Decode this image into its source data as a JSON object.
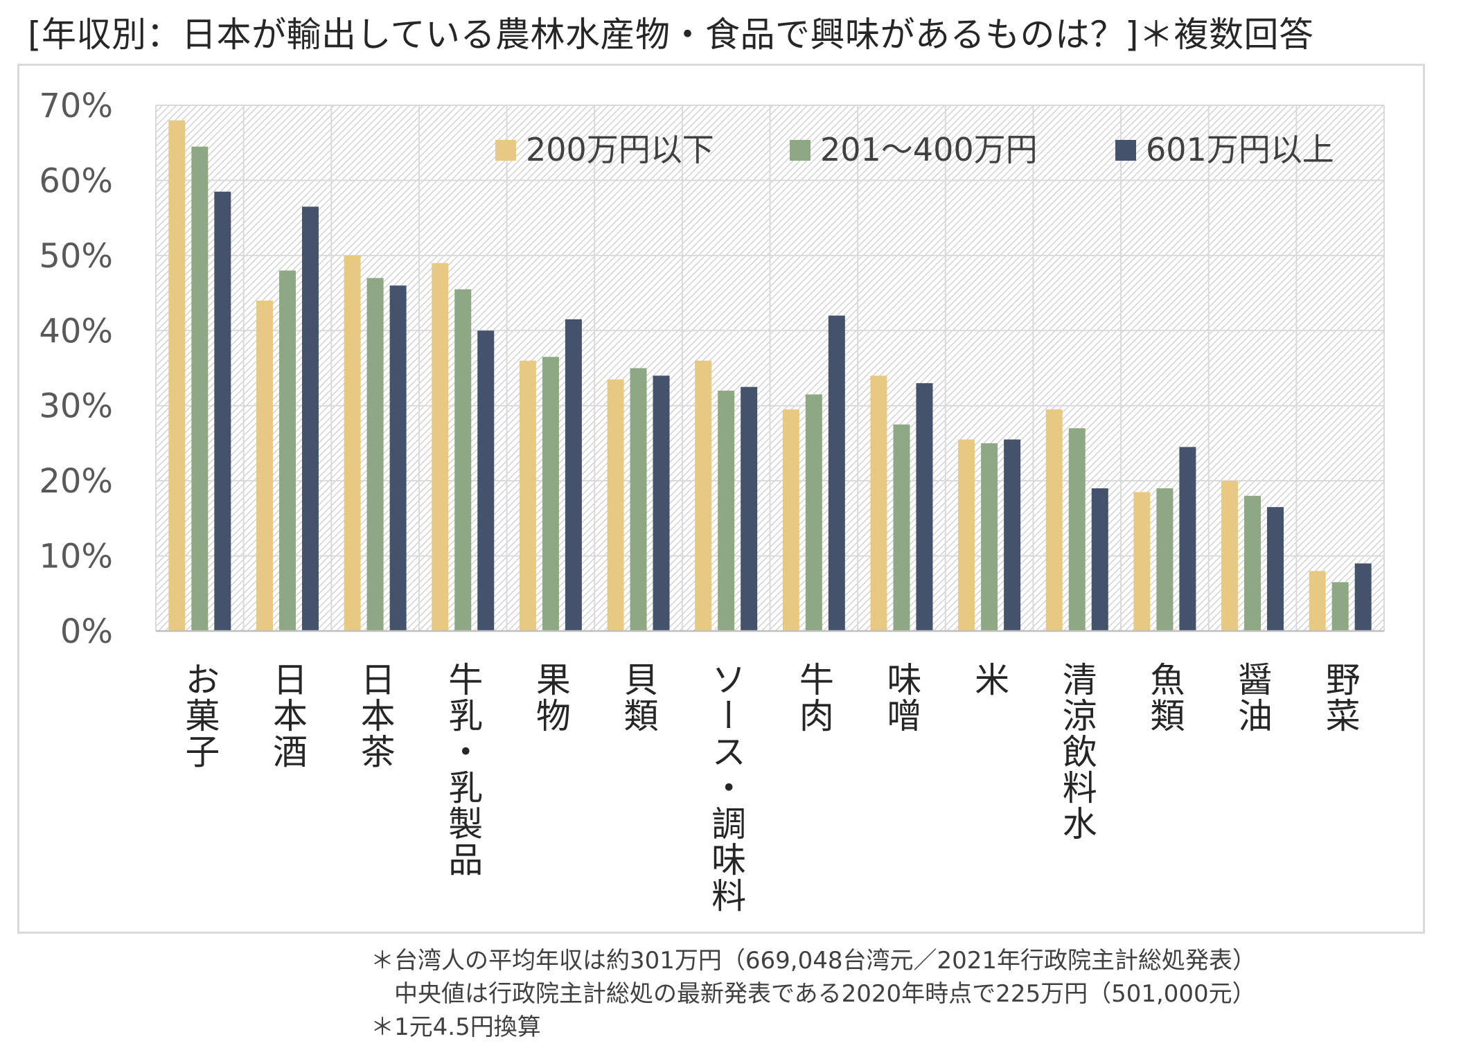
{
  "title": "[年収別：日本が輸出している農林水産物・食品で興味があるものは？]＊複数回答",
  "notes": [
    "＊台湾人の平均年収は約301万円（669,048台湾元／2021年行政院主計総処発表）",
    "　中央値は行政院主計総処の最新発表である2020年時点で225万円（501,000元）",
    "＊1元4.5円換算"
  ],
  "chart_data": {
    "type": "bar",
    "title": "",
    "xlabel": "",
    "ylabel": "",
    "ylim": [
      0,
      70
    ],
    "yticks": [
      "0%",
      "10%",
      "20%",
      "30%",
      "40%",
      "50%",
      "60%",
      "70%"
    ],
    "grid": true,
    "legend_position": "top-right",
    "categories": [
      "お菓子",
      "日本酒",
      "日本茶",
      "牛乳・乳製品",
      "果物",
      "貝類",
      "ソース・調味料",
      "牛肉",
      "味噌",
      "米",
      "清涼飲料水",
      "魚類",
      "醤油",
      "野菜"
    ],
    "series": [
      {
        "name": "200万円以下",
        "color": "#e8c982",
        "values": [
          68,
          44,
          50,
          49,
          36,
          33.5,
          36,
          29.5,
          34,
          25.5,
          29.5,
          18.5,
          20,
          8
        ]
      },
      {
        "name": "201～400万円",
        "color": "#8da883",
        "values": [
          64.5,
          48,
          47,
          45.5,
          36.5,
          35,
          32,
          31.5,
          27.5,
          25,
          27,
          19,
          18,
          6.5
        ]
      },
      {
        "name": "601万円以上",
        "color": "#45526b",
        "values": [
          58.5,
          56.5,
          46,
          40,
          41.5,
          34,
          32.5,
          42,
          33,
          25.5,
          19,
          24.5,
          16.5,
          9
        ]
      }
    ]
  }
}
